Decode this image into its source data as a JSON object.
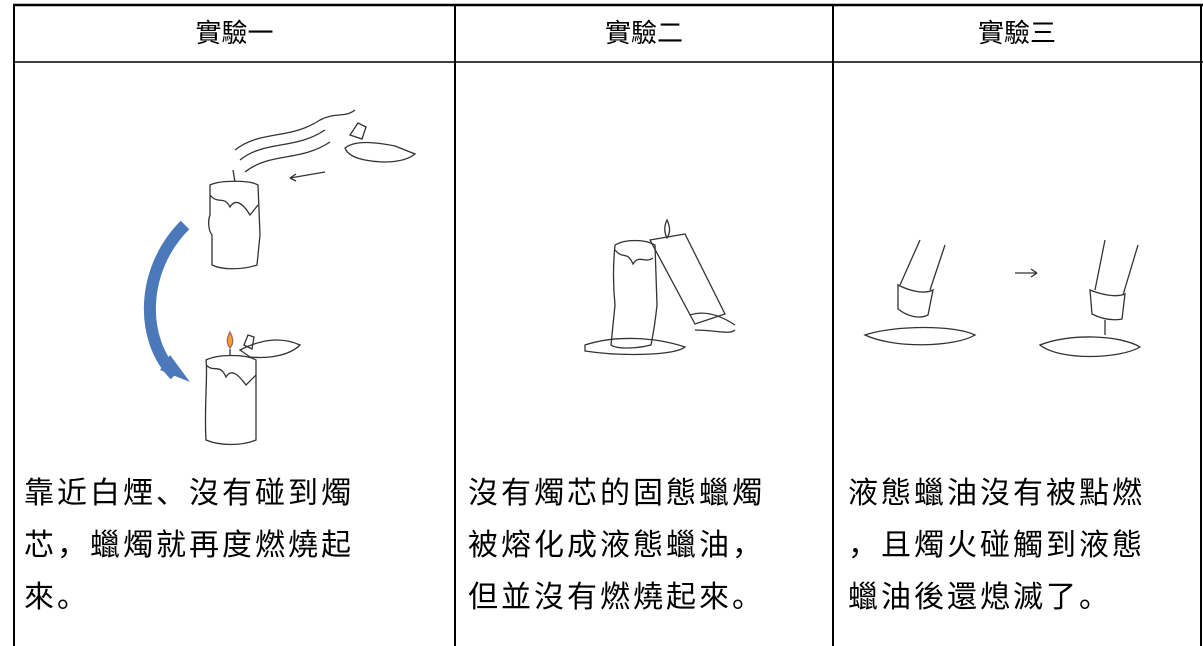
{
  "table": {
    "header": [
      "實驗一",
      "實驗二",
      "實驗三"
    ],
    "descriptions": [
      [
        "靠近白煙、沒有碰到燭",
        "芯，蠟燭就再度燃燒起",
        "來。"
      ],
      [
        "沒有燭芯的固態蠟燭",
        "被熔化成液態蠟油，",
        "但並沒有燃燒起來。"
      ],
      [
        "液態蠟油沒有被點燃",
        "，且燭火碰觸到液態",
        "蠟油後還熄滅了。"
      ]
    ]
  }
}
